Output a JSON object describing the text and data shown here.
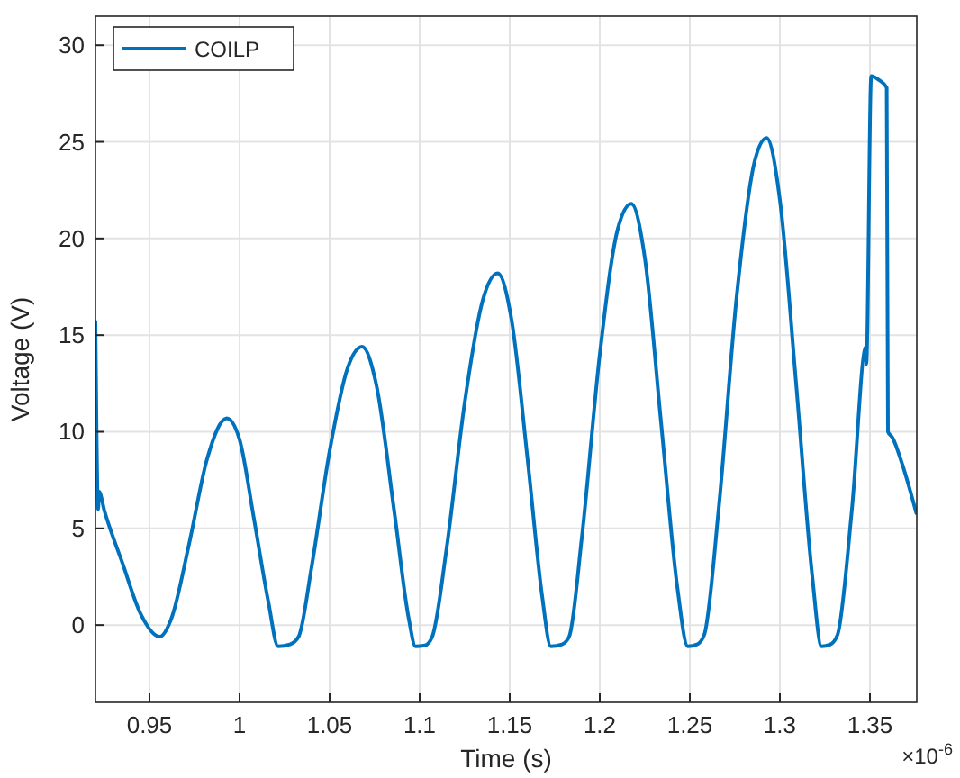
{
  "chart_data": {
    "type": "line",
    "xlabel": "Time (s)",
    "ylabel": "Voltage (V)",
    "xlim": [
      0.92,
      1.376
    ],
    "ylim": [
      -4,
      31.5
    ],
    "xticks": [
      0.95,
      1,
      1.05,
      1.1,
      1.15,
      1.2,
      1.25,
      1.3,
      1.35
    ],
    "yticks": [
      0,
      5,
      10,
      15,
      20,
      25,
      30
    ],
    "grid": true,
    "legend": "top left",
    "line_style": "solid",
    "marker": "none",
    "annotations": [
      "×10$^{-6}$"
    ],
    "series": [
      {
        "name": "COILP",
        "color": "#0072bd",
        "x": [
          0.92,
          0.9215,
          0.922,
          0.925,
          0.935,
          0.945,
          0.9557,
          0.962,
          0.972,
          0.982,
          0.9929,
          1.0,
          1.008,
          1.016,
          1.0214,
          1.028,
          1.0328,
          1.04,
          1.05,
          1.06,
          1.068,
          1.076,
          1.086,
          1.094,
          1.0977,
          1.103,
          1.107,
          1.115,
          1.125,
          1.135,
          1.1433,
          1.151,
          1.16,
          1.168,
          1.1728,
          1.179,
          1.183,
          1.19,
          1.2,
          1.21,
          1.2175,
          1.225,
          1.234,
          1.243,
          1.2489,
          1.254,
          1.258,
          1.266,
          1.276,
          1.286,
          1.2926,
          1.3,
          1.309,
          1.318,
          1.3231,
          1.328,
          1.332,
          1.34,
          1.3478,
          1.348,
          1.3507,
          1.355,
          1.3593,
          1.36,
          1.3625,
          1.368,
          1.3757
        ],
        "values": [
          15.7,
          6,
          6.9,
          5.9,
          3.2,
          0.6,
          -0.6,
          0.3,
          4.2,
          8.6,
          10.7,
          9.6,
          5.5,
          1.2,
          -1.1,
          -1.0,
          -0.6,
          3.0,
          9.0,
          13.3,
          14.4,
          12.4,
          5.8,
          0.3,
          -1.1,
          -1.05,
          -0.6,
          4,
          11.5,
          16.8,
          18.2,
          15.8,
          8.5,
          1.5,
          -1.1,
          -1.0,
          -0.6,
          4.5,
          14,
          20.5,
          21.8,
          19,
          10.5,
          2,
          -1.1,
          -1.0,
          -0.5,
          6,
          17,
          24,
          25.2,
          22,
          12.5,
          2.5,
          -1.1,
          -1.0,
          -0.5,
          6,
          14.4,
          13.5,
          28.4,
          28.2,
          27.8,
          10,
          9.7,
          8.3,
          5.8
        ]
      }
    ]
  }
}
